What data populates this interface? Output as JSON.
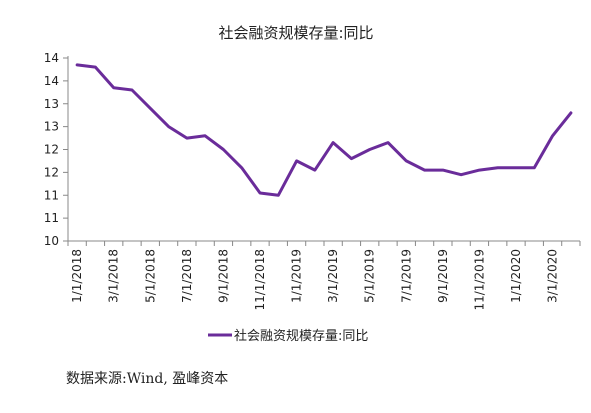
{
  "chart_data": {
    "type": "line",
    "title": "社会融资规模存量:同比",
    "x": [
      "1/1/2018",
      "2/1/2018",
      "3/1/2018",
      "4/1/2018",
      "5/1/2018",
      "6/1/2018",
      "7/1/2018",
      "8/1/2018",
      "9/1/2018",
      "10/1/2018",
      "11/1/2018",
      "12/1/2018",
      "1/1/2019",
      "2/1/2019",
      "3/1/2019",
      "4/1/2019",
      "5/1/2019",
      "6/1/2019",
      "7/1/2019",
      "8/1/2019",
      "9/1/2019",
      "10/1/2019",
      "11/1/2019",
      "12/1/2019",
      "1/1/2020",
      "2/1/2020",
      "3/1/2020",
      "4/1/2020"
    ],
    "x_tick_labels": [
      "1/1/2018",
      "3/1/2018",
      "5/1/2018",
      "7/1/2018",
      "9/1/2018",
      "11/1/2018",
      "1/1/2019",
      "3/1/2019",
      "5/1/2019",
      "7/1/2019",
      "9/1/2019",
      "11/1/2019",
      "1/1/2020",
      "3/1/2020"
    ],
    "y_tick_labels": [
      "10",
      "11",
      "11",
      "12",
      "12",
      "13",
      "13",
      "14",
      "14"
    ],
    "ylim": [
      10,
      14
    ],
    "series": [
      {
        "name": "社会融资规模存量:同比",
        "color": "#6a2c9a",
        "values": [
          13.85,
          13.8,
          13.35,
          13.3,
          12.9,
          12.5,
          12.25,
          12.3,
          12.0,
          11.6,
          11.05,
          11.0,
          11.75,
          11.55,
          12.15,
          11.8,
          12.0,
          12.15,
          11.75,
          11.55,
          11.55,
          11.45,
          11.55,
          11.6,
          11.6,
          11.6,
          12.3,
          12.8
        ]
      }
    ],
    "legend_position": "bottom",
    "grid": false
  },
  "source_text": "数据来源:Wind, 盈峰资本"
}
